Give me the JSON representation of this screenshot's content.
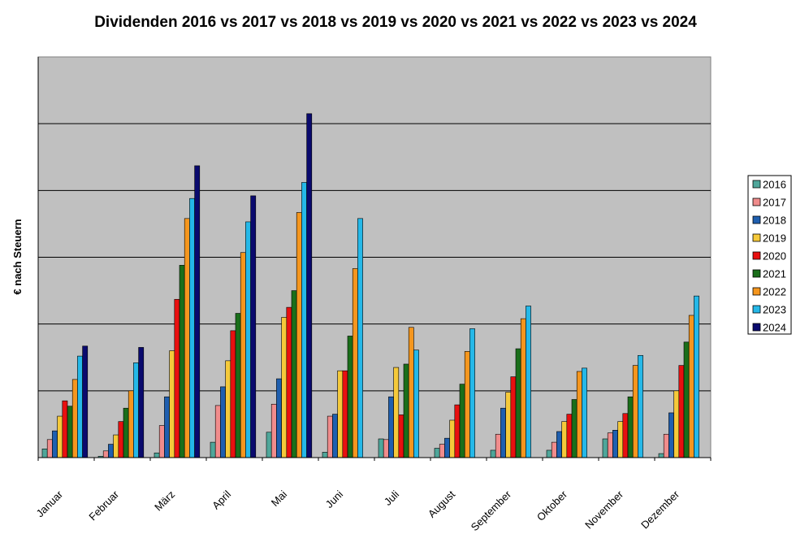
{
  "chart_data": {
    "type": "bar",
    "title": "Dividenden 2016 vs 2017 vs 2018 vs 2019 vs 2020 vs 2021 vs 2022 vs 2023 vs 2024",
    "xlabel": "",
    "ylabel": "€ nach Steuern",
    "ylim": [
      0,
      6
    ],
    "grid": true,
    "legend_position": "right",
    "categories": [
      "Januar",
      "Februar",
      "März",
      "April",
      "Mai",
      "Juni",
      "Juli",
      "August",
      "September",
      "Oktober",
      "November",
      "Dezember"
    ],
    "series": [
      {
        "name": "2016",
        "color": "#4fa69a",
        "values": [
          0.13,
          0.02,
          0.07,
          0.23,
          0.38,
          0.08,
          0.28,
          0.14,
          0.11,
          0.11,
          0.28,
          0.06
        ]
      },
      {
        "name": "2017",
        "color": "#f08c8c",
        "values": [
          0.27,
          0.1,
          0.48,
          0.78,
          0.8,
          0.62,
          0.27,
          0.2,
          0.35,
          0.23,
          0.37,
          0.35
        ]
      },
      {
        "name": "2018",
        "color": "#1f5faf",
        "values": [
          0.4,
          0.2,
          0.91,
          1.06,
          1.18,
          0.65,
          0.91,
          0.29,
          0.74,
          0.39,
          0.41,
          0.67
        ]
      },
      {
        "name": "2019",
        "color": "#f5c93a",
        "values": [
          0.62,
          0.34,
          1.6,
          1.45,
          2.1,
          1.3,
          1.35,
          0.56,
          0.98,
          0.54,
          0.54,
          1.0
        ]
      },
      {
        "name": "2020",
        "color": "#e81010",
        "values": [
          0.85,
          0.54,
          2.37,
          1.9,
          2.25,
          1.3,
          0.64,
          0.79,
          1.21,
          0.65,
          0.66,
          1.38
        ]
      },
      {
        "name": "2021",
        "color": "#1a6e1a",
        "values": [
          0.77,
          0.74,
          2.88,
          2.16,
          2.5,
          1.82,
          1.4,
          1.1,
          1.63,
          0.87,
          0.91,
          1.73
        ]
      },
      {
        "name": "2022",
        "color": "#f5961e",
        "values": [
          1.17,
          1.0,
          3.58,
          3.07,
          3.67,
          2.83,
          1.95,
          1.59,
          2.08,
          1.29,
          1.38,
          2.13
        ]
      },
      {
        "name": "2023",
        "color": "#25b8e8",
        "values": [
          1.52,
          1.42,
          3.88,
          3.53,
          4.12,
          3.58,
          1.61,
          1.93,
          2.27,
          1.34,
          1.53,
          2.42
        ]
      },
      {
        "name": "2024",
        "color": "#0a0a6e",
        "values": [
          1.67,
          1.65,
          4.37,
          3.92,
          5.15,
          null,
          null,
          null,
          null,
          null,
          null,
          null
        ]
      }
    ]
  }
}
